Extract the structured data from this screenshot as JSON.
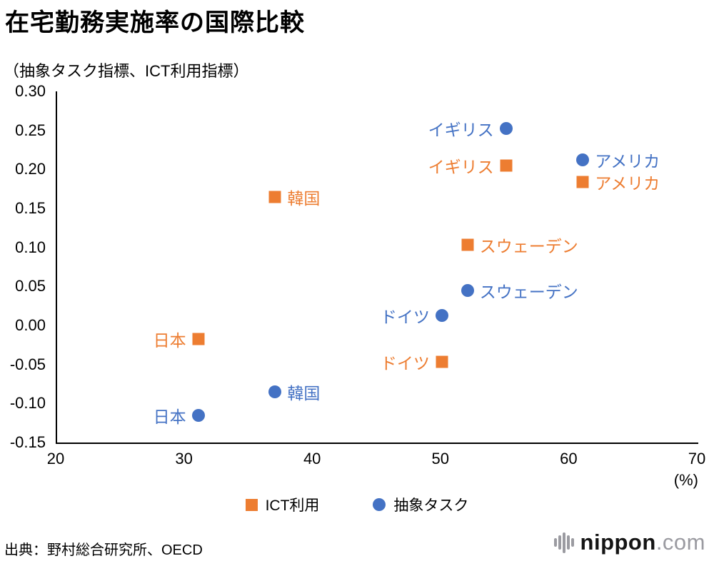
{
  "title": "在宅勤務実施率の国際比較",
  "subtitle": "（抽象タスク指標、ICT利用指標）",
  "source": "出典：野村総合研究所、OECD",
  "logo": {
    "name": "nippon",
    "suffix": ".com"
  },
  "colors": {
    "ict_orange": "#ED7D31",
    "abstract_blue": "#4472C4",
    "axis": "#000000",
    "logo_gray": "#9b9ba1"
  },
  "chart_data": {
    "type": "scatter",
    "title": "在宅勤務実施率の国際比較",
    "subtitle": "（抽象タスク指標、ICT利用指標）",
    "xlabel": "(%)",
    "ylabel": "",
    "xlim": [
      20,
      70
    ],
    "ylim": [
      -0.15,
      0.3
    ],
    "grid": false,
    "legend_position": "bottom-center",
    "x_ticks": [
      "20",
      "30",
      "40",
      "50",
      "60",
      "70"
    ],
    "y_ticks": [
      "0.30",
      "0.25",
      "0.20",
      "0.15",
      "0.10",
      "0.05",
      "0.00",
      "-0.05",
      "-0.10",
      "-0.15"
    ],
    "series": [
      {
        "name": "ICT利用",
        "marker": "square",
        "color": "#ED7D31",
        "points": [
          {
            "label": "日本",
            "x": 31,
            "y": -0.017,
            "label_side": "left"
          },
          {
            "label": "韓国",
            "x": 37,
            "y": 0.165,
            "label_side": "right"
          },
          {
            "label": "ドイツ",
            "x": 50,
            "y": -0.047,
            "label_side": "left"
          },
          {
            "label": "スウェーデン",
            "x": 52,
            "y": 0.103,
            "label_side": "right"
          },
          {
            "label": "イギリス",
            "x": 55,
            "y": 0.205,
            "label_side": "left"
          },
          {
            "label": "アメリカ",
            "x": 61,
            "y": 0.184,
            "label_side": "right"
          }
        ]
      },
      {
        "name": "抽象タスク",
        "marker": "circle",
        "color": "#4472C4",
        "points": [
          {
            "label": "日本",
            "x": 31,
            "y": -0.115,
            "label_side": "left"
          },
          {
            "label": "韓国",
            "x": 37,
            "y": -0.085,
            "label_side": "right"
          },
          {
            "label": "ドイツ",
            "x": 50,
            "y": 0.013,
            "label_side": "left"
          },
          {
            "label": "スウェーデン",
            "x": 52,
            "y": 0.045,
            "label_side": "right"
          },
          {
            "label": "イギリス",
            "x": 55,
            "y": 0.252,
            "label_side": "left"
          },
          {
            "label": "アメリカ",
            "x": 61,
            "y": 0.212,
            "label_side": "right"
          }
        ]
      }
    ]
  }
}
